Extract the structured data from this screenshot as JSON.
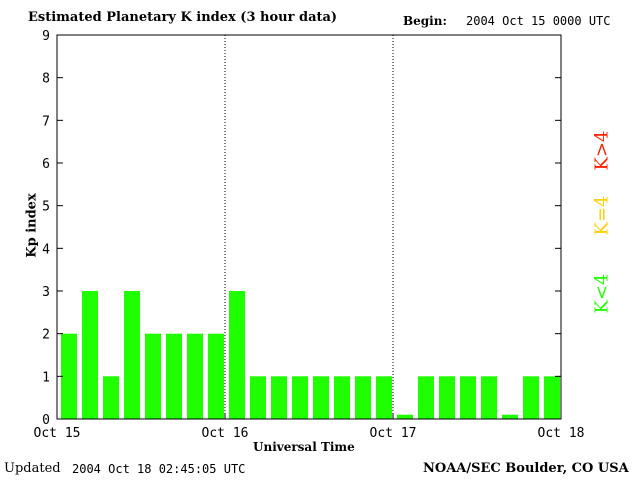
{
  "header": {
    "title": "Estimated Planetary K index (3 hour data)",
    "begin_label": "Begin:",
    "begin_value": "2004 Oct 15 0000 UTC"
  },
  "footer": {
    "updated_label": "Updated",
    "updated_value": "2004 Oct 18 02:45:05 UTC",
    "credit": "NOAA/SEC Boulder, CO USA"
  },
  "legend": {
    "high": {
      "label": "K>4",
      "color": "#ff2000"
    },
    "equal": {
      "label": "K=4",
      "color": "#ffd000"
    },
    "low": {
      "label": "K<4",
      "color": "#20ff00"
    }
  },
  "chart_data": {
    "type": "bar",
    "title": "Estimated Planetary K index (3 hour data)",
    "xlabel": "Universal Time",
    "ylabel": "Kp index",
    "ylim": [
      0,
      9
    ],
    "yticks": [
      0,
      1,
      2,
      3,
      4,
      5,
      6,
      7,
      8,
      9
    ],
    "xticks": [
      "Oct 15",
      "Oct 16",
      "Oct 17",
      "Oct 18"
    ],
    "bin_hours": 3,
    "series": [
      {
        "values": [
          2,
          3,
          1,
          3,
          2,
          2,
          2,
          2,
          3,
          1,
          1,
          1,
          1,
          1,
          1,
          1,
          0.1,
          1,
          1,
          1,
          1,
          0.1,
          1,
          1
        ]
      }
    ],
    "bar_color": "#20ff00",
    "day_dividers": true
  }
}
